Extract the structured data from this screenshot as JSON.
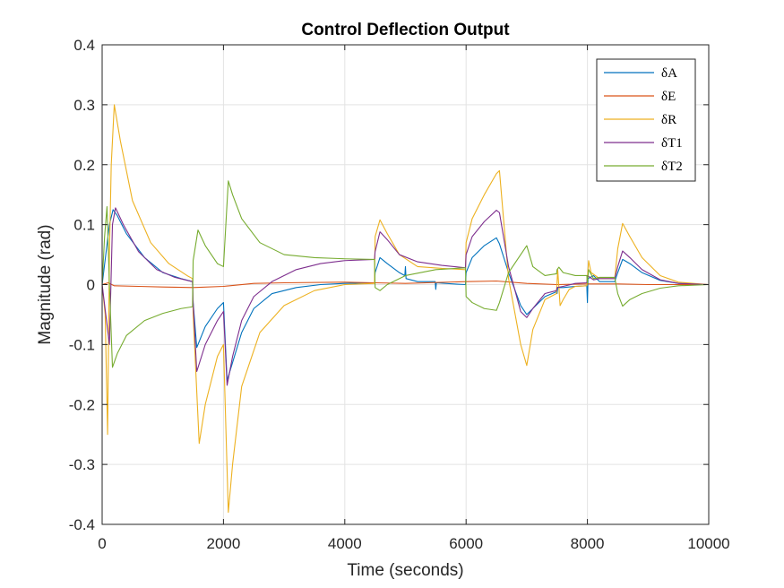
{
  "chart_data": {
    "type": "line",
    "title": "Control Deflection Output",
    "xlabel": "Time (seconds)",
    "ylabel": "Magnitude (rad)",
    "xlim": [
      0,
      10000
    ],
    "ylim": [
      -0.4,
      0.4
    ],
    "xticks": [
      0,
      2000,
      4000,
      6000,
      8000,
      10000
    ],
    "xtick_labels": [
      "0",
      "2000",
      "4000",
      "6000",
      "8000",
      "10000"
    ],
    "yticks": [
      -0.4,
      -0.3,
      -0.2,
      -0.1,
      0,
      0.1,
      0.2,
      0.3,
      0.4
    ],
    "ytick_labels": [
      "-0.4",
      "-0.3",
      "-0.2",
      "-0.1",
      "0",
      "0.1",
      "0.2",
      "0.3",
      "0.4"
    ],
    "grid": true,
    "legend_position": "top-right",
    "series": [
      {
        "name": "δA",
        "color": "#0072BD",
        "x": [
          0,
          60,
          120,
          180,
          250,
          400,
          700,
          1000,
          1300,
          1490,
          1500,
          1560,
          1700,
          1900,
          2000,
          2060,
          2150,
          2300,
          2500,
          2800,
          3200,
          3600,
          4000,
          4490,
          4500,
          4580,
          4700,
          4900,
          4990,
          5000,
          5010,
          5200,
          5490,
          5500,
          5510,
          5800,
          5990,
          6000,
          6100,
          6300,
          6500,
          6550,
          6700,
          6900,
          7000,
          7100,
          7300,
          7490,
          7500,
          7510,
          7600,
          7800,
          7990,
          8000,
          8010,
          8100,
          8200,
          8450,
          8500,
          8580,
          8700,
          8900,
          9200,
          9500,
          10000
        ],
        "y": [
          0,
          0.05,
          0.1,
          0.125,
          0.115,
          0.085,
          0.045,
          0.02,
          0.01,
          0.005,
          -0.03,
          -0.105,
          -0.07,
          -0.04,
          -0.03,
          -0.16,
          -0.13,
          -0.08,
          -0.04,
          -0.015,
          -0.005,
          0,
          0.002,
          0.003,
          0.02,
          0.045,
          0.035,
          0.02,
          0.015,
          0.03,
          0.01,
          0.005,
          0.005,
          -0.008,
          0.003,
          0.001,
          0,
          0.02,
          0.045,
          0.065,
          0.078,
          0.068,
          0.02,
          -0.035,
          -0.05,
          -0.04,
          -0.02,
          -0.012,
          -0.015,
          -0.005,
          -0.005,
          -0.003,
          -0.002,
          -0.03,
          0.01,
          0.015,
          0.005,
          0.005,
          0.02,
          0.042,
          0.035,
          0.02,
          0.007,
          0.002,
          0
        ]
      },
      {
        "name": "δE",
        "color": "#D95319",
        "x": [
          0,
          100,
          200,
          600,
          1000,
          1500,
          2000,
          2500,
          3000,
          4000,
          4500,
          5000,
          6000,
          6500,
          7000,
          7500,
          8000,
          8500,
          9000,
          10000
        ],
        "y": [
          0,
          0.003,
          -0.002,
          -0.003,
          -0.004,
          -0.005,
          -0.003,
          0.002,
          0.003,
          0.004,
          0.003,
          0.002,
          0.005,
          0.006,
          0.002,
          0,
          0.001,
          0.001,
          0,
          0
        ]
      },
      {
        "name": "δR",
        "color": "#EDB120",
        "x": [
          0,
          50,
          90,
          120,
          150,
          200,
          300,
          500,
          800,
          1100,
          1400,
          1490,
          1500,
          1600,
          1700,
          1900,
          2000,
          2080,
          2150,
          2300,
          2600,
          3000,
          3500,
          4000,
          4490,
          4500,
          4580,
          4700,
          4900,
          5200,
          5600,
          5990,
          6000,
          6100,
          6300,
          6500,
          6550,
          6700,
          6900,
          7000,
          7100,
          7300,
          7490,
          7500,
          7510,
          7550,
          7600,
          7700,
          7800,
          7990,
          8000,
          8020,
          8060,
          8200,
          8450,
          8500,
          8580,
          8700,
          8900,
          9200,
          9500,
          10000
        ],
        "y": [
          0,
          -0.05,
          -0.25,
          0.05,
          0.2,
          0.3,
          0.24,
          0.14,
          0.07,
          0.035,
          0.015,
          0.01,
          -0.05,
          -0.265,
          -0.2,
          -0.12,
          -0.1,
          -0.38,
          -0.3,
          -0.17,
          -0.08,
          -0.035,
          -0.01,
          0,
          0.002,
          0.08,
          0.108,
          0.085,
          0.05,
          0.03,
          0.027,
          0.025,
          0.07,
          0.11,
          0.15,
          0.185,
          0.19,
          0.01,
          -0.1,
          -0.135,
          -0.075,
          -0.025,
          -0.015,
          0.005,
          0.025,
          -0.035,
          -0.025,
          -0.008,
          -0.003,
          -0.002,
          0.01,
          0.04,
          0.02,
          0.01,
          0.01,
          0.06,
          0.102,
          0.08,
          0.045,
          0.015,
          0.004,
          0
        ]
      },
      {
        "name": "δT1",
        "color": "#7E2F8E",
        "x": [
          0,
          60,
          120,
          170,
          220,
          350,
          600,
          900,
          1200,
          1490,
          1500,
          1560,
          1700,
          1900,
          2000,
          2060,
          2150,
          2300,
          2500,
          2800,
          3200,
          3600,
          4000,
          4490,
          4500,
          4580,
          4700,
          4900,
          5200,
          5600,
          5990,
          6000,
          6100,
          6300,
          6500,
          6550,
          6700,
          6900,
          7000,
          7100,
          7300,
          7490,
          7500,
          7600,
          7800,
          7990,
          8000,
          8100,
          8200,
          8450,
          8500,
          8580,
          8700,
          8900,
          9200,
          9500,
          10000
        ],
        "y": [
          0,
          -0.05,
          -0.1,
          0.1,
          0.128,
          0.1,
          0.055,
          0.025,
          0.012,
          0.005,
          -0.03,
          -0.145,
          -0.1,
          -0.06,
          -0.045,
          -0.168,
          -0.12,
          -0.06,
          -0.02,
          0.005,
          0.025,
          0.035,
          0.04,
          0.042,
          0.055,
          0.088,
          0.075,
          0.05,
          0.038,
          0.032,
          0.028,
          0.05,
          0.08,
          0.105,
          0.124,
          0.12,
          0.03,
          -0.045,
          -0.055,
          -0.04,
          -0.015,
          -0.01,
          -0.005,
          -0.003,
          0.002,
          0.003,
          0.015,
          0.008,
          0.01,
          0.01,
          0.03,
          0.056,
          0.045,
          0.025,
          0.008,
          0.002,
          0
        ]
      },
      {
        "name": "δT2",
        "color": "#77AC30",
        "x": [
          0,
          40,
          80,
          120,
          170,
          250,
          400,
          700,
          1000,
          1300,
          1490,
          1500,
          1580,
          1700,
          1900,
          2000,
          2080,
          2150,
          2300,
          2600,
          3000,
          3500,
          4000,
          4490,
          4500,
          4580,
          4700,
          5000,
          5500,
          5990,
          6000,
          6100,
          6300,
          6500,
          6550,
          6700,
          6900,
          7000,
          7100,
          7300,
          7490,
          7500,
          7530,
          7600,
          7800,
          7990,
          8000,
          8020,
          8100,
          8200,
          8450,
          8500,
          8580,
          8700,
          8900,
          9200,
          9500,
          10000
        ],
        "y": [
          0,
          0.08,
          0.13,
          0,
          -0.138,
          -0.115,
          -0.085,
          -0.06,
          -0.048,
          -0.04,
          -0.037,
          0.04,
          0.091,
          0.065,
          0.035,
          0.03,
          0.173,
          0.15,
          0.11,
          0.07,
          0.05,
          0.045,
          0.043,
          0.042,
          -0.005,
          -0.01,
          0,
          0.015,
          0.025,
          0.028,
          -0.02,
          -0.03,
          -0.04,
          -0.043,
          -0.03,
          0.02,
          0.05,
          0.065,
          0.03,
          0.015,
          0.018,
          0.025,
          0.029,
          0.02,
          0.015,
          0.015,
          0.002,
          0.025,
          0.01,
          0.012,
          0.012,
          -0.015,
          -0.036,
          -0.025,
          -0.015,
          -0.006,
          -0.002,
          0
        ]
      }
    ]
  }
}
